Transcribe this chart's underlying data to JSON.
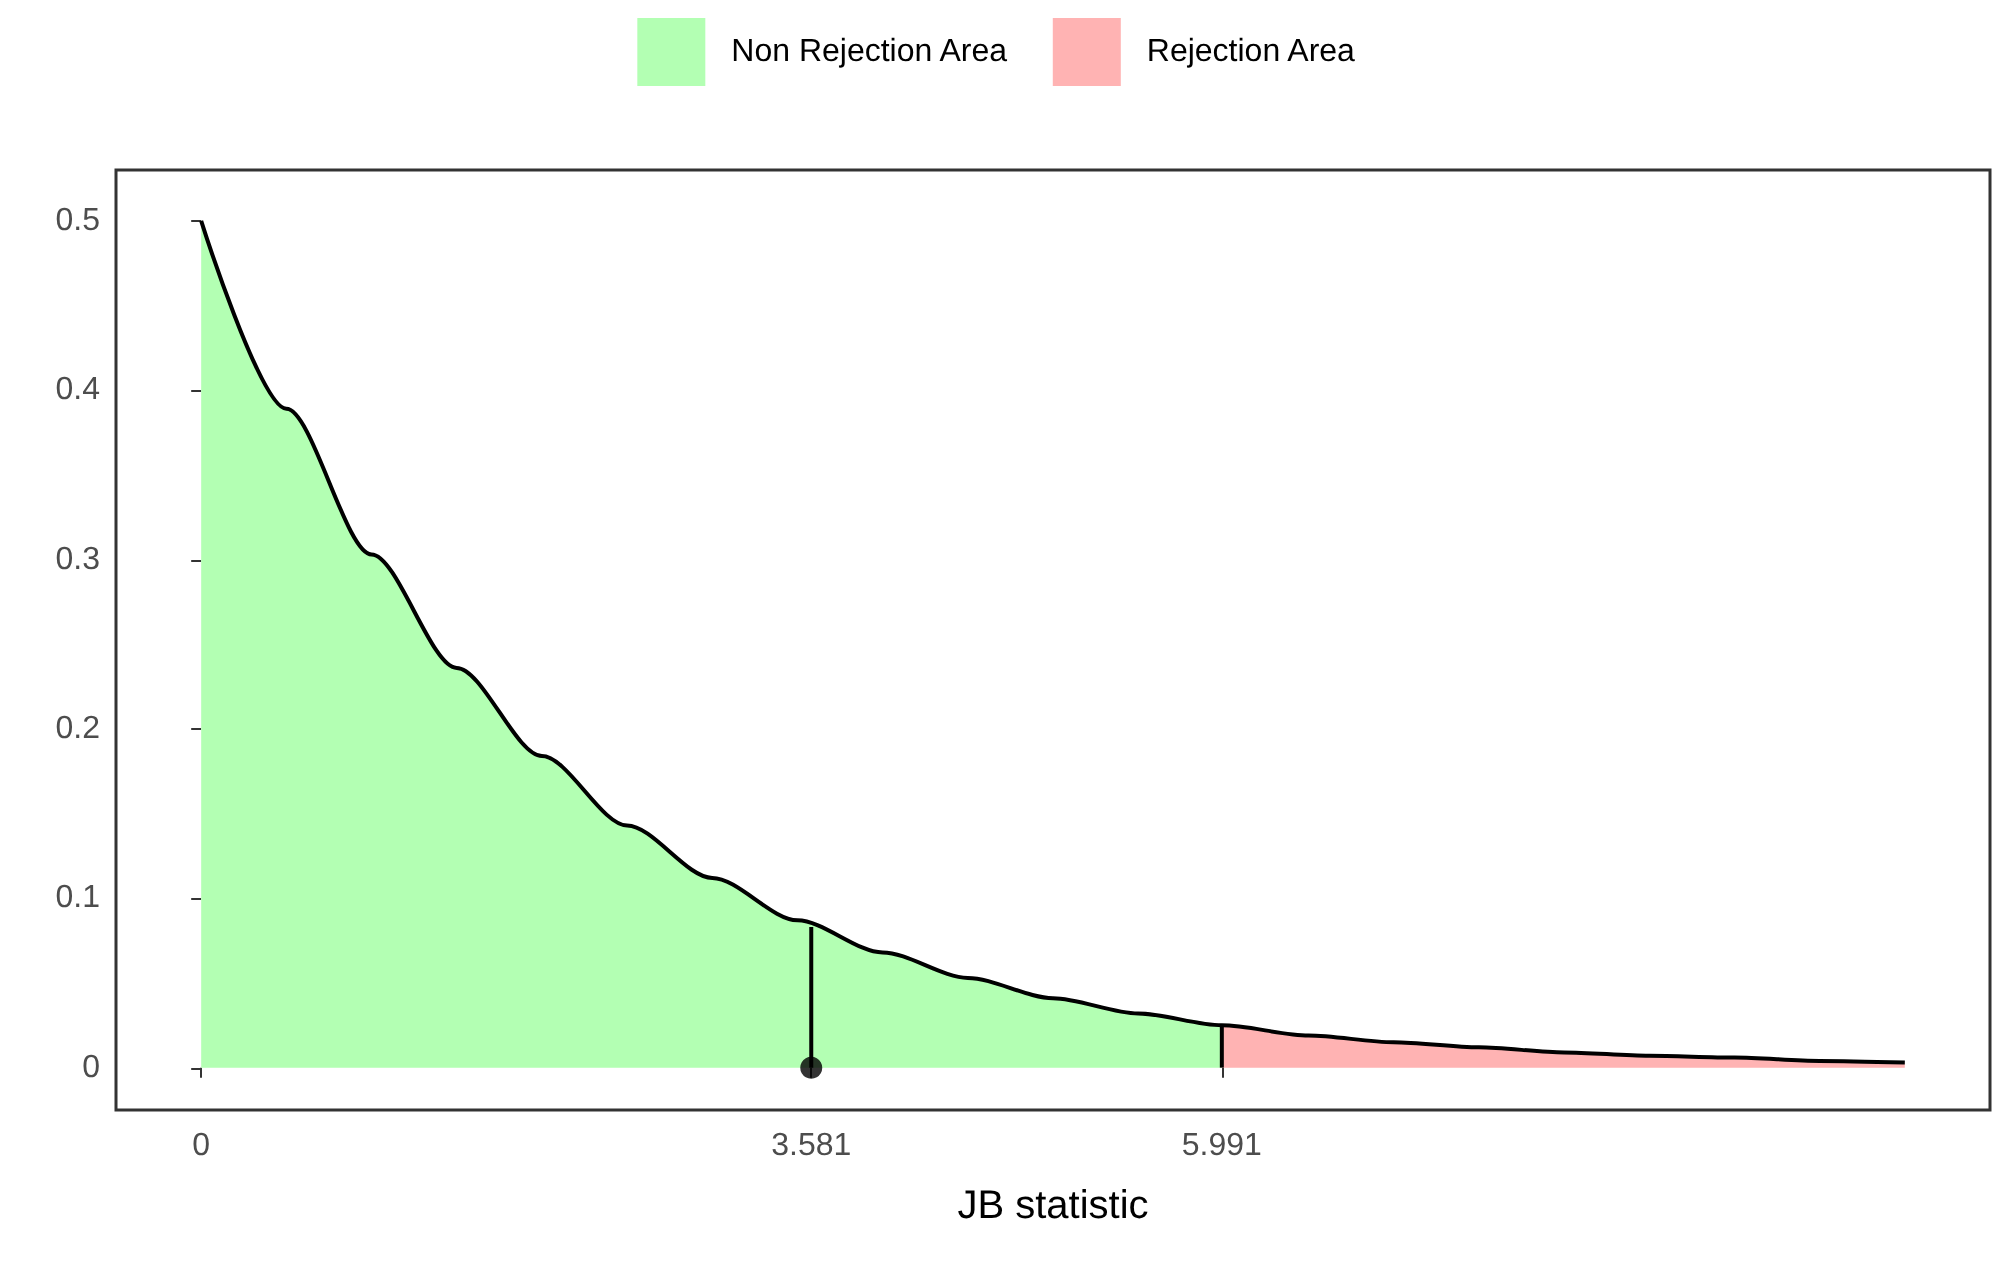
{
  "chart_data": {
    "type": "area",
    "xlabel": "JB statistic",
    "legend": "top",
    "grid": false,
    "xlim": [
      -0.5,
      10.5
    ],
    "xticks": [
      0,
      3.581,
      5.991
    ],
    "ylim": [
      -0.025,
      0.53
    ],
    "yticks": [
      0,
      0.1,
      0.2,
      0.3,
      0.4,
      0.5
    ],
    "series": [
      {
        "name": "Non Rejection Area",
        "color": "#b3ffb3",
        "x": [
          0,
          0.5,
          1,
          1.5,
          2,
          2.5,
          3,
          3.5,
          4,
          4.5,
          5,
          5.5,
          5.991
        ],
        "values": [
          0.5,
          0.389,
          0.303,
          0.236,
          0.184,
          0.143,
          0.112,
          0.087,
          0.068,
          0.053,
          0.041,
          0.032,
          0.025
        ]
      },
      {
        "name": "Rejection Area",
        "color": "#ffb3b3",
        "x": [
          5.991,
          6.5,
          7,
          7.5,
          8,
          8.5,
          9,
          9.5,
          10
        ],
        "values": [
          0.025,
          0.019,
          0.015,
          0.012,
          0.009,
          0.007,
          0.006,
          0.004,
          0.003
        ]
      },
      {
        "type": "line",
        "color": "#000000",
        "x": [
          0,
          0.5,
          1,
          1.5,
          2,
          2.5,
          3,
          3.5,
          4,
          4.5,
          5,
          5.5,
          5.991,
          6.5,
          7,
          7.5,
          8,
          8.5,
          9,
          9.5,
          10
        ],
        "values": [
          0.5,
          0.389,
          0.303,
          0.236,
          0.184,
          0.143,
          0.112,
          0.087,
          0.068,
          0.053,
          0.041,
          0.032,
          0.025,
          0.019,
          0.015,
          0.012,
          0.009,
          0.007,
          0.006,
          0.004,
          0.003
        ]
      },
      {
        "type": "line",
        "color": "#000000",
        "x": [
          3.581,
          3.581
        ],
        "values": [
          0,
          0.083
        ]
      },
      {
        "type": "line",
        "color": "#000000",
        "x": [
          5.991,
          5.991
        ],
        "values": [
          0,
          0.025
        ]
      },
      {
        "type": "scatter",
        "color": "#000000",
        "marker": "circle",
        "x": [
          3.581
        ],
        "values": [
          0
        ]
      }
    ]
  }
}
